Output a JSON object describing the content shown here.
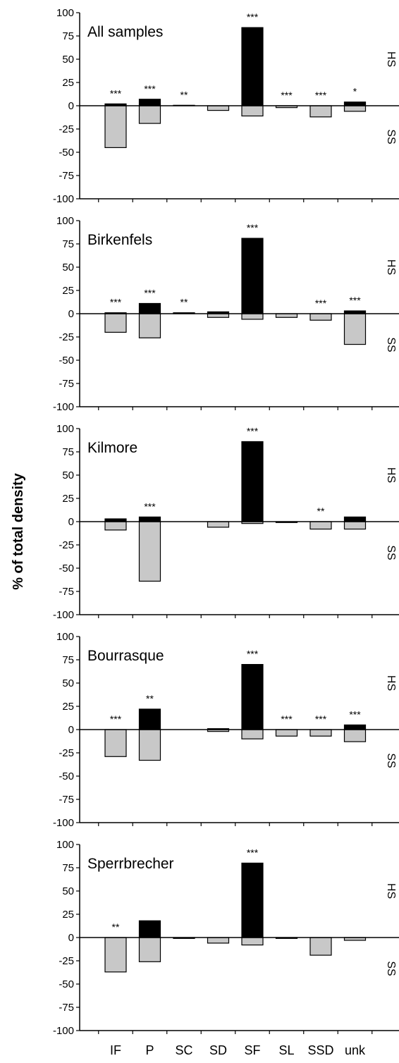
{
  "chart_data": {
    "type": "bar",
    "ylabel": "% of total density",
    "categories": [
      "IF",
      "P",
      "SC",
      "SD",
      "SF",
      "SL",
      "SSD",
      "unk"
    ],
    "ylim": [
      -100,
      100
    ],
    "yticks": [
      100,
      75,
      50,
      25,
      0,
      -25,
      -50,
      -75,
      -100
    ],
    "series_labels": {
      "hs": "HS",
      "ss": "SS"
    },
    "colors": {
      "hs": "#000000",
      "ss": "#c8c8c8",
      "axis": "#000000"
    },
    "panels": [
      {
        "title": "All samples",
        "hs": [
          2,
          7,
          0.5,
          0,
          84,
          0,
          0,
          4
        ],
        "ss": [
          -45,
          -19,
          0,
          -5,
          -11,
          -2,
          -12,
          -6
        ],
        "sig": [
          "***",
          "***",
          "**",
          "",
          "***",
          "***",
          "***",
          "*"
        ]
      },
      {
        "title": "Birkenfels",
        "hs": [
          1,
          11,
          1,
          2,
          81,
          0,
          0,
          3
        ],
        "ss": [
          -20,
          -26,
          0,
          -4,
          -6,
          -4,
          -7,
          -33
        ],
        "sig": [
          "***",
          "***",
          "**",
          "",
          "***",
          "",
          "***",
          "***"
        ]
      },
      {
        "title": "Kilmore",
        "hs": [
          3,
          5,
          0,
          0,
          86,
          0,
          0,
          5
        ],
        "ss": [
          -9,
          -64,
          0,
          -6,
          -2,
          -1,
          -8,
          -8
        ],
        "sig": [
          "",
          "***",
          "",
          "",
          "***",
          "",
          "**",
          ""
        ]
      },
      {
        "title": "Bourrasque",
        "hs": [
          0,
          22,
          0,
          1,
          70,
          0,
          0,
          5
        ],
        "ss": [
          -29,
          -33,
          0,
          -2,
          -10,
          -7,
          -7,
          -13
        ],
        "sig": [
          "***",
          "**",
          "",
          "",
          "***",
          "***",
          "***",
          "***"
        ]
      },
      {
        "title": "Sperrbrecher",
        "hs": [
          0,
          18,
          0,
          0,
          80,
          0,
          0,
          0
        ],
        "ss": [
          -37,
          -26,
          -1,
          -6,
          -8,
          -1,
          -19,
          -3
        ],
        "sig": [
          "**",
          "",
          "",
          "",
          "***",
          "",
          "",
          ""
        ]
      }
    ]
  }
}
